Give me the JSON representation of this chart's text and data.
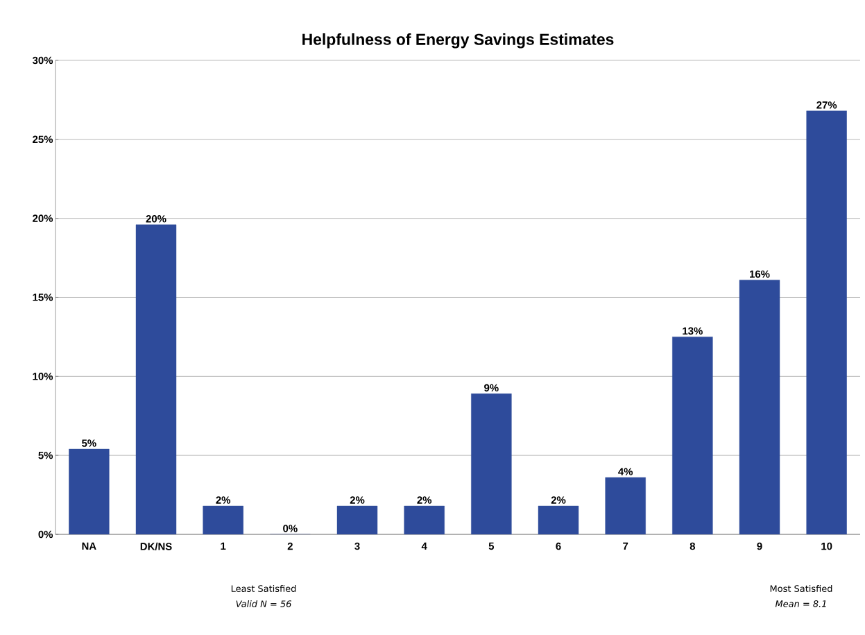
{
  "chart_data": {
    "type": "bar",
    "title": "Helpfulness of Energy Savings Estimates",
    "categories": [
      "NA",
      "DK/NS",
      "1",
      "2",
      "3",
      "4",
      "5",
      "6",
      "7",
      "8",
      "9",
      "10"
    ],
    "values": [
      5.4,
      19.6,
      1.8,
      0,
      1.8,
      1.8,
      8.9,
      1.8,
      3.6,
      12.5,
      16.1,
      26.8
    ],
    "value_labels": [
      "5%",
      "20%",
      "2%",
      "0%",
      "2%",
      "2%",
      "9%",
      "2%",
      "4%",
      "13%",
      "16%",
      "27%"
    ],
    "color": "#2e4b9b",
    "ylim": [
      0,
      30
    ],
    "yticks": [
      {
        "value": 0,
        "label": "0%"
      },
      {
        "value": 5,
        "label": "5%"
      },
      {
        "value": 10,
        "label": "10%"
      },
      {
        "value": 15,
        "label": "15%"
      },
      {
        "value": 20,
        "label": "20%"
      },
      {
        "value": 25,
        "label": "25%"
      },
      {
        "value": 30,
        "label": "30%"
      }
    ],
    "grid": "y",
    "annotations": [
      "Least Satisfied",
      "Valid N = 56",
      "Most Satisfied",
      "Mean = 8.1"
    ]
  }
}
